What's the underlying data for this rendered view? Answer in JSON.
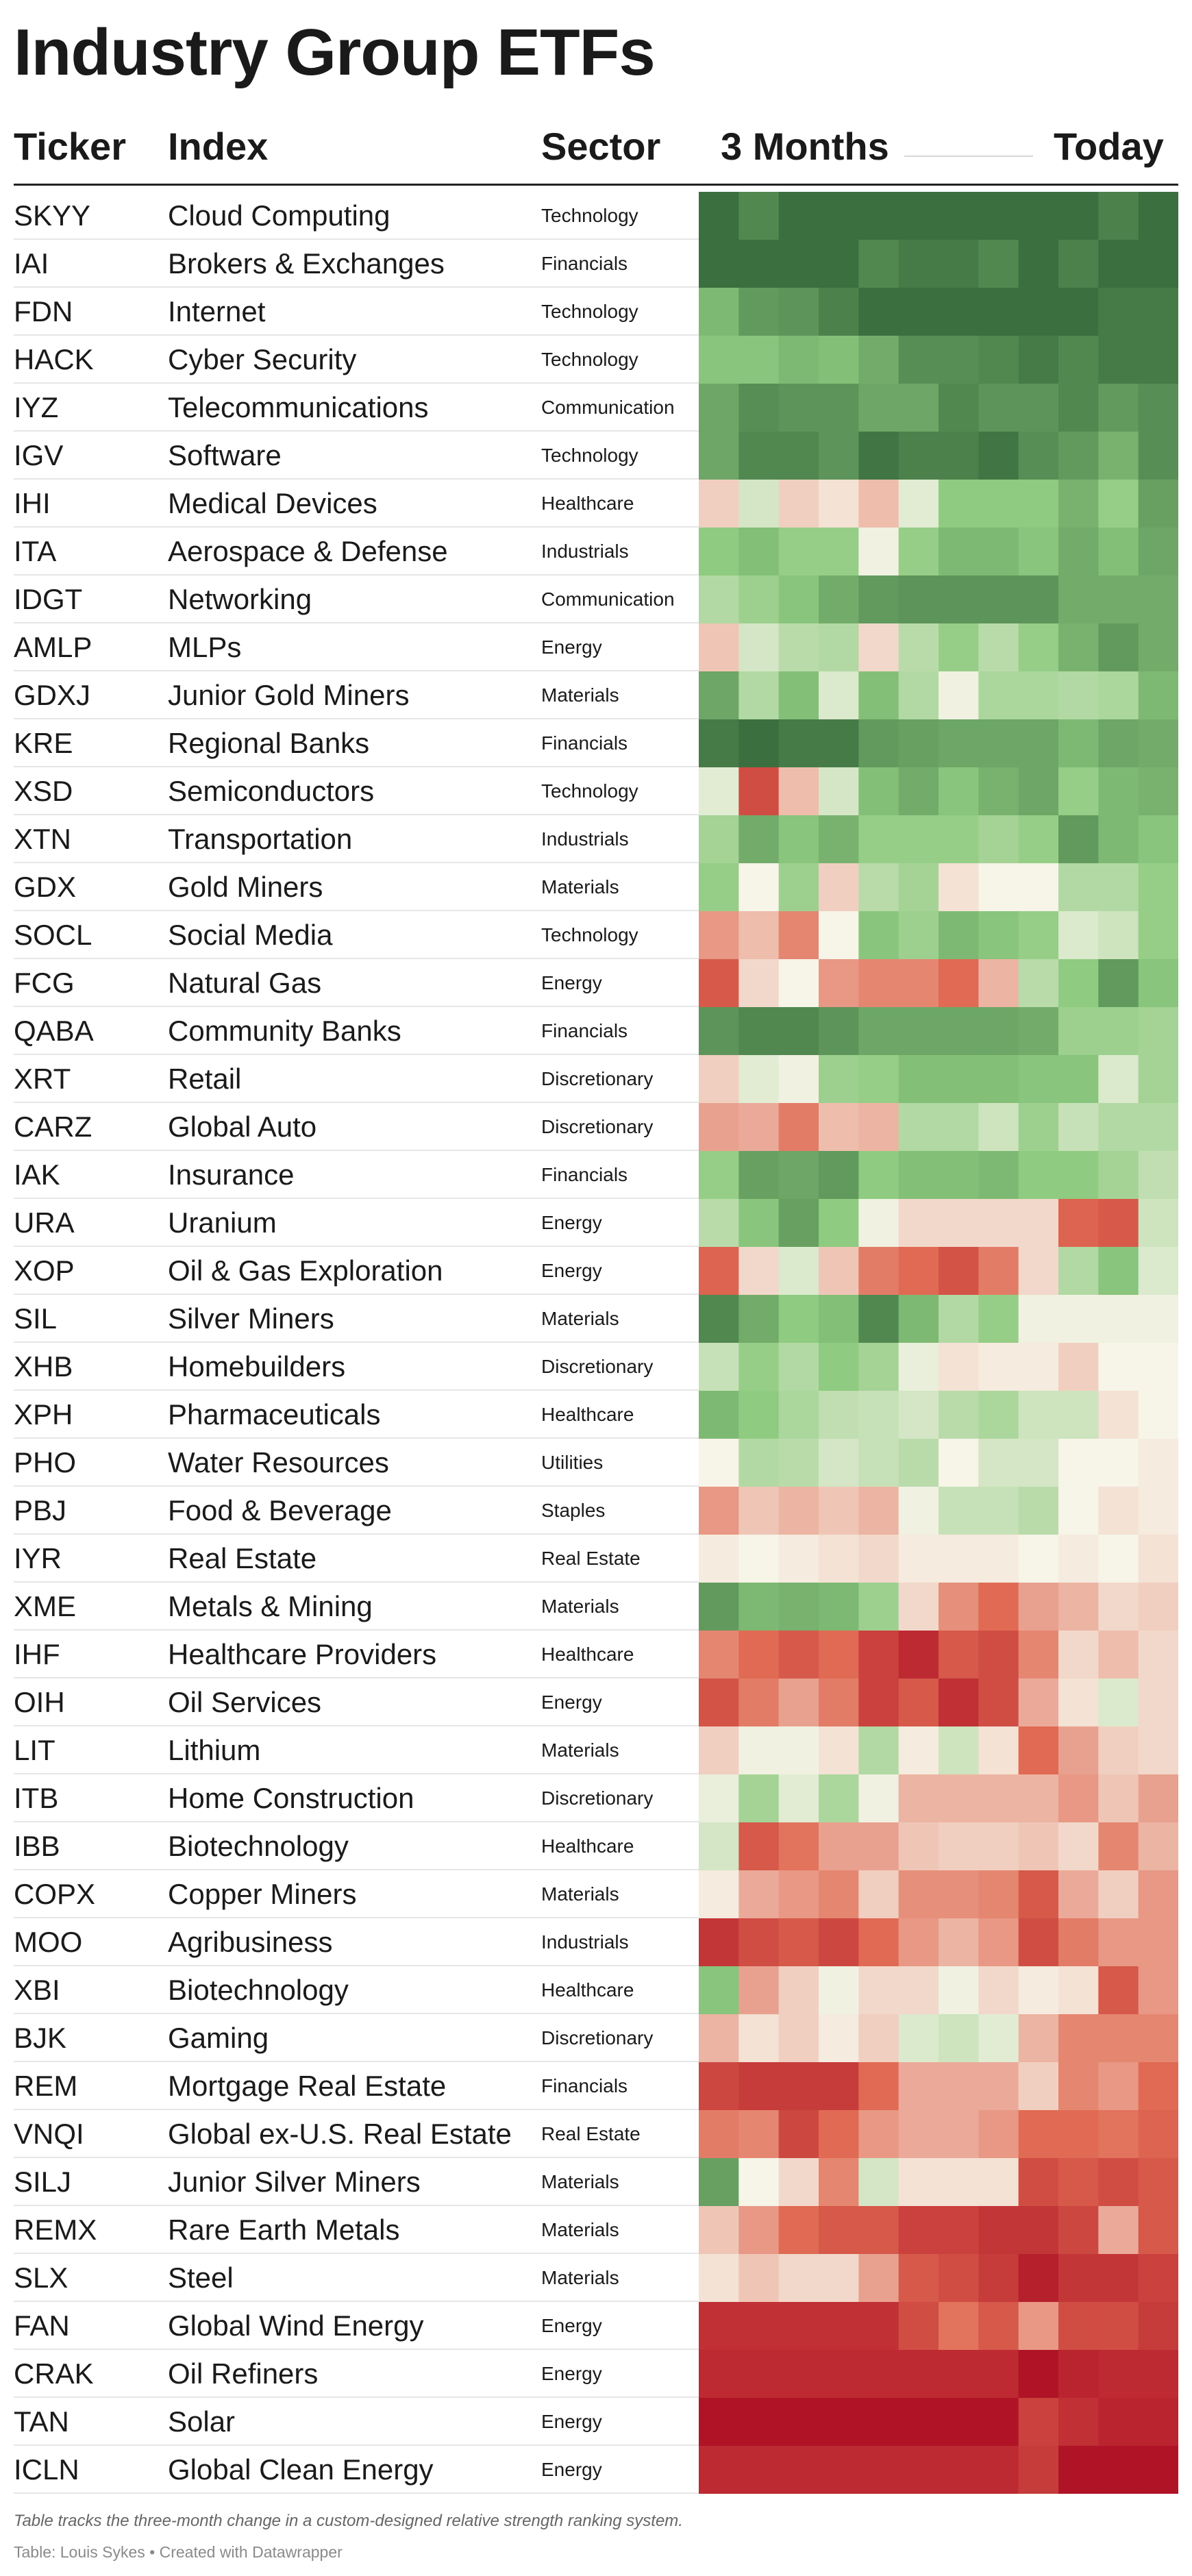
{
  "title": "Industry Group ETFs",
  "headers": {
    "ticker": "Ticker",
    "index": "Index",
    "sector": "Sector",
    "start": "3 Months",
    "end": "Today"
  },
  "notes": "Table tracks the three-month change in a custom-designed relative strength ranking system.",
  "source": "Table: Louis Sykes • Created with Datawrapper",
  "palette": {
    "dark_red": "#b01326",
    "red": "#e06a53",
    "light": "#f7f4e8",
    "light_green": "#8fcb80",
    "dark_green": "#3b6f3f"
  },
  "chart_data": {
    "type": "heatmap",
    "columns": 12,
    "scale": "relative strength: -3 (weakest, dark red) to 3 (strongest, dark green)",
    "rows": [
      {
        "ticker": "SKYY",
        "index": "Cloud Computing",
        "sector": "Technology",
        "values": [
          3.0,
          2.6,
          3.0,
          3.0,
          3.0,
          3.0,
          3.0,
          3.0,
          3.0,
          3.0,
          2.7,
          3.0
        ]
      },
      {
        "ticker": "IAI",
        "index": "Brokers & Exchanges",
        "sector": "Financials",
        "values": [
          3.0,
          3.0,
          3.0,
          3.0,
          2.6,
          2.8,
          2.8,
          2.6,
          3.0,
          2.7,
          3.0,
          3.0
        ]
      },
      {
        "ticker": "FDN",
        "index": "Internet",
        "sector": "Technology",
        "values": [
          1.8,
          2.3,
          2.4,
          2.7,
          3.0,
          3.0,
          3.0,
          3.0,
          3.0,
          3.0,
          2.8,
          2.8
        ]
      },
      {
        "ticker": "HACK",
        "index": "Cyber Security",
        "sector": "Technology",
        "values": [
          1.6,
          1.6,
          1.8,
          1.7,
          2.0,
          2.5,
          2.5,
          2.6,
          2.8,
          2.6,
          2.8,
          2.8
        ]
      },
      {
        "ticker": "IYZ",
        "index": "Telecommunications",
        "sector": "Communication",
        "values": [
          2.1,
          2.5,
          2.4,
          2.4,
          2.1,
          2.1,
          2.6,
          2.4,
          2.4,
          2.6,
          2.3,
          2.5
        ]
      },
      {
        "ticker": "IGV",
        "index": "Software",
        "sector": "Technology",
        "values": [
          2.1,
          2.6,
          2.6,
          2.4,
          2.9,
          2.7,
          2.7,
          2.9,
          2.5,
          2.3,
          1.9,
          2.5
        ]
      },
      {
        "ticker": "IHI",
        "index": "Medical Devices",
        "sector": "Healthcare",
        "values": [
          -0.4,
          0.5,
          -0.4,
          -0.2,
          -0.6,
          0.3,
          1.5,
          1.5,
          1.5,
          1.9,
          1.4,
          2.2
        ]
      },
      {
        "ticker": "ITA",
        "index": "Aerospace & Defense",
        "sector": "Industrials",
        "values": [
          1.5,
          1.7,
          1.4,
          1.4,
          0.1,
          1.4,
          1.8,
          1.8,
          1.6,
          2.0,
          1.7,
          2.1
        ]
      },
      {
        "ticker": "IDGT",
        "index": "Networking",
        "sector": "Communication",
        "values": [
          1.0,
          1.3,
          1.6,
          2.0,
          2.3,
          2.4,
          2.4,
          2.4,
          2.4,
          2.0,
          2.0,
          2.0
        ]
      },
      {
        "ticker": "AMLP",
        "index": "MLPs",
        "sector": "Energy",
        "values": [
          -0.5,
          0.5,
          0.9,
          1.0,
          -0.3,
          0.9,
          1.4,
          0.9,
          1.4,
          1.9,
          2.3,
          2.0
        ]
      },
      {
        "ticker": "GDXJ",
        "index": "Junior Gold Miners",
        "sector": "Materials",
        "values": [
          2.1,
          1.0,
          1.7,
          0.4,
          1.7,
          1.0,
          0.1,
          1.1,
          1.1,
          1.0,
          1.1,
          1.8
        ]
      },
      {
        "ticker": "KRE",
        "index": "Regional Banks",
        "sector": "Financials",
        "values": [
          2.8,
          3.0,
          2.8,
          2.8,
          2.3,
          2.2,
          2.1,
          2.1,
          2.1,
          1.8,
          2.1,
          2.0
        ]
      },
      {
        "ticker": "XSD",
        "index": "Semiconductors",
        "sector": "Technology",
        "values": [
          0.3,
          -2.0,
          -0.6,
          0.5,
          1.7,
          2.0,
          1.6,
          1.9,
          2.1,
          1.4,
          1.8,
          1.9
        ]
      },
      {
        "ticker": "XTN",
        "index": "Transportation",
        "sector": "Industrials",
        "values": [
          1.2,
          2.0,
          1.6,
          1.9,
          1.4,
          1.4,
          1.4,
          1.2,
          1.4,
          2.3,
          1.8,
          1.6
        ]
      },
      {
        "ticker": "GDX",
        "index": "Gold Miners",
        "sector": "Materials",
        "values": [
          1.4,
          0.0,
          1.3,
          -0.4,
          0.9,
          1.2,
          -0.2,
          0.0,
          0.0,
          1.0,
          1.0,
          1.4
        ]
      },
      {
        "ticker": "SOCL",
        "index": "Social Media",
        "sector": "Technology",
        "values": [
          -1.0,
          -0.6,
          -1.2,
          0.0,
          1.6,
          1.3,
          1.8,
          1.6,
          1.4,
          0.4,
          0.6,
          1.4
        ]
      },
      {
        "ticker": "FCG",
        "index": "Natural Gas",
        "sector": "Energy",
        "values": [
          -1.8,
          -0.3,
          0.0,
          -1.0,
          -1.2,
          -1.2,
          -1.5,
          -0.7,
          0.9,
          1.5,
          2.3,
          1.6
        ]
      },
      {
        "ticker": "QABA",
        "index": "Community Banks",
        "sector": "Financials",
        "values": [
          2.4,
          2.6,
          2.6,
          2.4,
          2.1,
          2.1,
          2.1,
          2.1,
          2.0,
          1.3,
          1.3,
          1.2
        ]
      },
      {
        "ticker": "XRT",
        "index": "Retail",
        "sector": "Discretionary",
        "values": [
          -0.4,
          0.3,
          0.1,
          1.3,
          1.4,
          1.7,
          1.7,
          1.7,
          1.6,
          1.6,
          0.4,
          1.2
        ]
      },
      {
        "ticker": "CARZ",
        "index": "Global Auto",
        "sector": "Discretionary",
        "values": [
          -0.9,
          -0.8,
          -1.3,
          -0.6,
          -0.7,
          1.0,
          1.0,
          0.6,
          1.3,
          0.7,
          1.0,
          1.0
        ]
      },
      {
        "ticker": "IAK",
        "index": "Insurance",
        "sector": "Financials",
        "values": [
          1.4,
          2.2,
          2.1,
          2.3,
          1.5,
          1.7,
          1.7,
          1.8,
          1.5,
          1.5,
          1.2,
          0.8
        ]
      },
      {
        "ticker": "URA",
        "index": "Uranium",
        "sector": "Energy",
        "values": [
          0.9,
          1.6,
          2.2,
          1.5,
          0.1,
          -0.3,
          -0.3,
          -0.3,
          -0.3,
          -1.6,
          -1.8,
          0.6
        ]
      },
      {
        "ticker": "XOP",
        "index": "Oil & Gas Exploration",
        "sector": "Energy",
        "values": [
          -1.6,
          -0.3,
          0.4,
          -0.5,
          -1.3,
          -1.5,
          -1.9,
          -1.3,
          -0.3,
          1.0,
          1.6,
          0.4
        ]
      },
      {
        "ticker": "SIL",
        "index": "Silver Miners",
        "sector": "Materials",
        "values": [
          2.6,
          2.0,
          1.5,
          1.7,
          2.6,
          1.8,
          1.0,
          1.4,
          0.1,
          0.1,
          0.1,
          0.1
        ]
      },
      {
        "ticker": "XHB",
        "index": "Homebuilders",
        "sector": "Discretionary",
        "values": [
          0.7,
          1.4,
          1.0,
          1.5,
          1.2,
          0.2,
          -0.2,
          -0.1,
          -0.1,
          -0.4,
          0.0,
          0.0
        ]
      },
      {
        "ticker": "XPH",
        "index": "Pharmaceuticals",
        "sector": "Healthcare",
        "values": [
          1.8,
          1.5,
          1.1,
          0.8,
          0.7,
          0.5,
          0.9,
          1.1,
          0.6,
          0.6,
          -0.2,
          0.0
        ]
      },
      {
        "ticker": "PHO",
        "index": "Water Resources",
        "sector": "Utilities",
        "values": [
          0.0,
          1.0,
          0.9,
          0.5,
          0.7,
          0.9,
          0.0,
          0.5,
          0.5,
          0.0,
          0.0,
          -0.1
        ]
      },
      {
        "ticker": "PBJ",
        "index": "Food & Beverage",
        "sector": "Staples",
        "values": [
          -1.0,
          -0.5,
          -0.7,
          -0.5,
          -0.7,
          0.1,
          0.7,
          0.7,
          0.9,
          0.0,
          -0.2,
          -0.1
        ]
      },
      {
        "ticker": "IYR",
        "index": "Real Estate",
        "sector": "Real Estate",
        "values": [
          -0.1,
          0.0,
          -0.1,
          -0.2,
          -0.3,
          -0.1,
          -0.1,
          -0.1,
          0.0,
          -0.1,
          0.0,
          -0.2
        ]
      },
      {
        "ticker": "XME",
        "index": "Metals & Mining",
        "sector": "Materials",
        "values": [
          2.3,
          1.8,
          1.9,
          1.8,
          1.3,
          -0.3,
          -1.1,
          -1.5,
          -0.9,
          -0.7,
          -0.3,
          -0.4
        ]
      },
      {
        "ticker": "IHF",
        "index": "Healthcare Providers",
        "sector": "Healthcare",
        "values": [
          -1.2,
          -1.5,
          -1.8,
          -1.5,
          -2.2,
          -2.6,
          -1.8,
          -2.0,
          -1.2,
          -0.3,
          -0.6,
          -0.3
        ]
      },
      {
        "ticker": "OIH",
        "index": "Oil Services",
        "sector": "Energy",
        "values": [
          -1.9,
          -1.3,
          -0.9,
          -1.3,
          -2.2,
          -1.8,
          -2.5,
          -2.0,
          -0.8,
          -0.2,
          0.4,
          -0.3
        ]
      },
      {
        "ticker": "LIT",
        "index": "Lithium",
        "sector": "Materials",
        "values": [
          -0.4,
          0.1,
          0.1,
          -0.2,
          1.0,
          -0.1,
          0.6,
          -0.2,
          -1.5,
          -0.9,
          -0.4,
          -0.3
        ]
      },
      {
        "ticker": "ITB",
        "index": "Home Construction",
        "sector": "Discretionary",
        "values": [
          0.2,
          1.2,
          0.3,
          1.1,
          0.1,
          -0.7,
          -0.7,
          -0.7,
          -0.7,
          -1.0,
          -0.5,
          -0.9
        ]
      },
      {
        "ticker": "IBB",
        "index": "Biotechnology",
        "sector": "Healthcare",
        "values": [
          0.5,
          -1.8,
          -1.4,
          -0.9,
          -0.9,
          -0.5,
          -0.4,
          -0.4,
          -0.5,
          -0.3,
          -1.2,
          -0.7
        ]
      },
      {
        "ticker": "COPX",
        "index": "Copper Miners",
        "sector": "Materials",
        "values": [
          -0.1,
          -0.8,
          -1.0,
          -1.2,
          -0.4,
          -1.1,
          -1.1,
          -1.2,
          -1.8,
          -0.8,
          -0.4,
          -1.0
        ]
      },
      {
        "ticker": "MOO",
        "index": "Agribusiness",
        "sector": "Industrials",
        "values": [
          -2.4,
          -2.0,
          -1.8,
          -2.1,
          -1.5,
          -1.0,
          -0.7,
          -1.0,
          -2.0,
          -1.3,
          -1.0,
          -1.0
        ]
      },
      {
        "ticker": "XBI",
        "index": "Biotechnology",
        "sector": "Healthcare",
        "values": [
          1.6,
          -0.9,
          -0.4,
          0.1,
          -0.3,
          -0.3,
          0.1,
          -0.3,
          -0.1,
          -0.2,
          -1.8,
          -1.0
        ]
      },
      {
        "ticker": "BJK",
        "index": "Gaming",
        "sector": "Discretionary",
        "values": [
          -0.7,
          -0.2,
          -0.4,
          -0.1,
          -0.4,
          0.4,
          0.6,
          0.3,
          -0.7,
          -1.2,
          -1.2,
          -1.2
        ]
      },
      {
        "ticker": "REM",
        "index": "Mortgage Real Estate",
        "sector": "Financials",
        "values": [
          -2.1,
          -2.3,
          -2.3,
          -2.3,
          -1.5,
          -0.8,
          -0.8,
          -0.8,
          -0.4,
          -1.2,
          -1.0,
          -1.5
        ]
      },
      {
        "ticker": "VNQI",
        "index": "Global ex-U.S. Real Estate",
        "sector": "Real Estate",
        "values": [
          -1.3,
          -1.2,
          -2.1,
          -1.5,
          -1.0,
          -0.8,
          -0.8,
          -1.0,
          -1.5,
          -1.5,
          -1.4,
          -1.6
        ]
      },
      {
        "ticker": "SILJ",
        "index": "Junior Silver Miners",
        "sector": "Materials",
        "values": [
          2.2,
          0.0,
          -0.3,
          -1.2,
          0.5,
          -0.2,
          -0.2,
          -0.2,
          -2.0,
          -1.8,
          -2.0,
          -1.8
        ]
      },
      {
        "ticker": "REMX",
        "index": "Rare Earth Metals",
        "sector": "Materials",
        "values": [
          -0.5,
          -1.0,
          -1.5,
          -1.8,
          -1.8,
          -2.2,
          -2.2,
          -2.4,
          -2.4,
          -2.1,
          -0.8,
          -1.8
        ]
      },
      {
        "ticker": "SLX",
        "index": "Steel",
        "sector": "Materials",
        "values": [
          -0.2,
          -0.5,
          -0.3,
          -0.3,
          -0.9,
          -1.8,
          -2.0,
          -2.3,
          -2.8,
          -2.4,
          -2.4,
          -2.2
        ]
      },
      {
        "ticker": "FAN",
        "index": "Global Wind Energy",
        "sector": "Energy",
        "values": [
          -2.5,
          -2.5,
          -2.5,
          -2.5,
          -2.5,
          -2.0,
          -1.4,
          -1.8,
          -1.0,
          -2.0,
          -2.0,
          -2.3
        ]
      },
      {
        "ticker": "CRAK",
        "index": "Oil Refiners",
        "sector": "Energy",
        "values": [
          -2.6,
          -2.6,
          -2.6,
          -2.6,
          -2.6,
          -2.6,
          -2.6,
          -2.6,
          -3.0,
          -2.7,
          -2.6,
          -2.6
        ]
      },
      {
        "ticker": "TAN",
        "index": "Solar",
        "sector": "Energy",
        "values": [
          -3.0,
          -3.0,
          -3.0,
          -3.0,
          -3.0,
          -3.0,
          -3.0,
          -3.0,
          -2.2,
          -2.5,
          -2.7,
          -2.7
        ]
      },
      {
        "ticker": "ICLN",
        "index": "Global Clean Energy",
        "sector": "Energy",
        "values": [
          -2.6,
          -2.6,
          -2.6,
          -2.6,
          -2.6,
          -2.6,
          -2.6,
          -2.6,
          -2.3,
          -3.0,
          -3.0,
          -3.0
        ]
      }
    ]
  }
}
